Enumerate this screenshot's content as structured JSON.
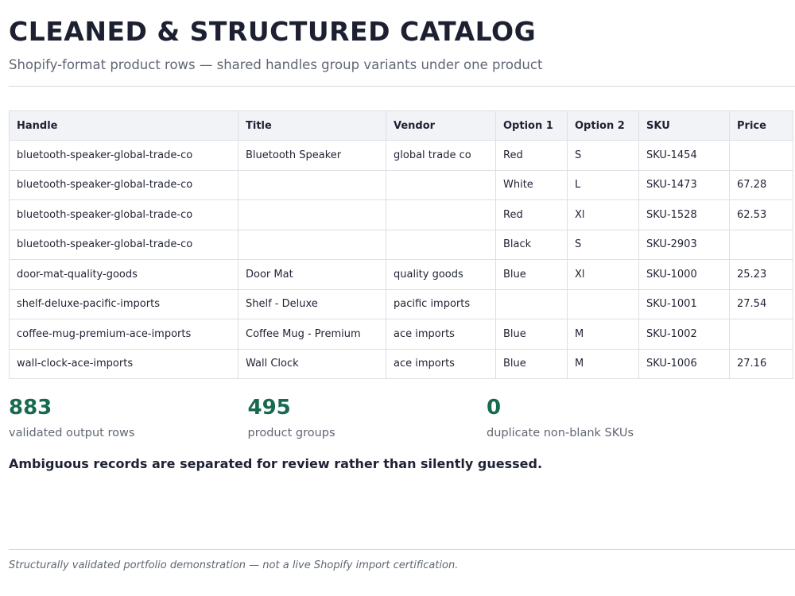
{
  "header": {
    "title": "CLEANED & STRUCTURED CATALOG",
    "subtitle": "Shopify-format product rows — shared handles group variants under one product"
  },
  "table": {
    "columns": [
      "Handle",
      "Title",
      "Vendor",
      "Option 1",
      "Option 2",
      "SKU",
      "Price"
    ],
    "rows": [
      [
        "bluetooth-speaker-global-trade-co",
        "Bluetooth Speaker",
        "global trade co",
        "Red",
        "S",
        "SKU-1454",
        null
      ],
      [
        "bluetooth-speaker-global-trade-co",
        null,
        null,
        "White",
        "L",
        "SKU-1473",
        67.28
      ],
      [
        "bluetooth-speaker-global-trade-co",
        null,
        null,
        "Red",
        "Xl",
        "SKU-1528",
        62.53
      ],
      [
        "bluetooth-speaker-global-trade-co",
        null,
        null,
        "Black",
        "S",
        "SKU-2903",
        null
      ],
      [
        "door-mat-quality-goods",
        "Door Mat",
        "quality goods",
        "Blue",
        "Xl",
        "SKU-1000",
        25.23
      ],
      [
        "shelf-deluxe-pacific-imports",
        "Shelf - Deluxe",
        "pacific imports",
        null,
        null,
        "SKU-1001",
        27.54
      ],
      [
        "coffee-mug-premium-ace-imports",
        "Coffee Mug - Premium",
        "ace imports",
        "Blue",
        "M",
        "SKU-1002",
        null
      ],
      [
        "wall-clock-ace-imports",
        "Wall Clock",
        "ace imports",
        "Blue",
        "M",
        "SKU-1006",
        27.16
      ]
    ]
  },
  "stats": [
    {
      "value": 883,
      "label": "validated output rows"
    },
    {
      "value": 495,
      "label": "product groups"
    },
    {
      "value": 0,
      "label": "duplicate non-blank SKUs"
    }
  ],
  "note": "Ambiguous records are separated for review rather than silently guessed.",
  "footer": "Structurally validated portfolio demonstration — not a live Shopify import certification."
}
